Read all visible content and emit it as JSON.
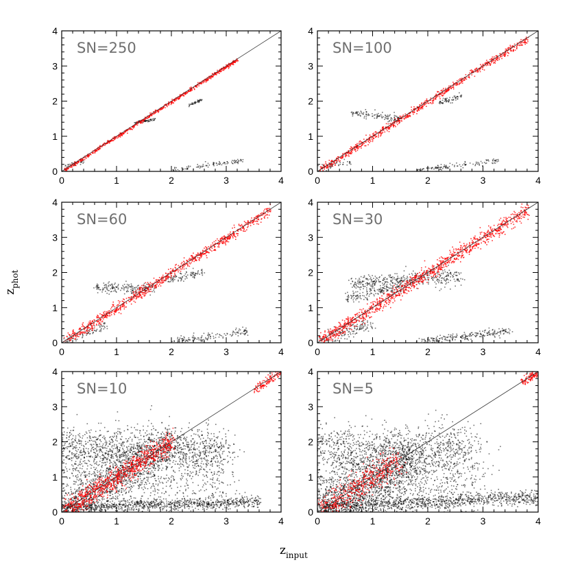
{
  "chart_data": {
    "type": "scatter",
    "figure": "photometric vs input redshift at varying signal-to-noise",
    "xlabel": "z",
    "xlabel_sub": "input",
    "ylabel": "z",
    "ylabel_sub": "phot",
    "xlim": [
      0,
      4
    ],
    "ylim": [
      0,
      4
    ],
    "xticks": [
      0,
      1,
      2,
      3,
      4
    ],
    "yticks": [
      0,
      1,
      2,
      3,
      4
    ],
    "colors": {
      "points": "#000000",
      "highlight": "#ff0000",
      "label": "#6f6f6f",
      "diagonal": "#333333"
    },
    "panels": [
      {
        "label": "SN=250",
        "reference_line": [
          [
            0,
            0
          ],
          [
            4,
            4
          ]
        ],
        "clusters": [
          {
            "x0": 0.05,
            "y0": 0.05,
            "x1": 3.2,
            "y1": 3.2,
            "w": 0.025,
            "n": 700,
            "c": "red"
          },
          {
            "x0": 1.3,
            "y0": 1.4,
            "x1": 1.7,
            "y1": 1.5,
            "w": 0.02,
            "n": 60,
            "c": "black"
          },
          {
            "x0": 2.3,
            "y0": 1.9,
            "x1": 2.55,
            "y1": 2.05,
            "w": 0.02,
            "n": 40,
            "c": "black"
          },
          {
            "x0": 2.0,
            "y0": 0.05,
            "x1": 3.3,
            "y1": 0.32,
            "w": 0.03,
            "n": 100,
            "c": "black"
          },
          {
            "x0": 0.05,
            "y0": 0.15,
            "x1": 0.4,
            "y1": 0.3,
            "w": 0.03,
            "n": 30,
            "c": "black"
          }
        ]
      },
      {
        "label": "SN=100",
        "reference_line": [
          [
            0,
            0
          ],
          [
            4,
            4
          ]
        ],
        "clusters": [
          {
            "x0": 0.05,
            "y0": 0.05,
            "x1": 3.8,
            "y1": 3.8,
            "w": 0.05,
            "n": 800,
            "c": "red"
          },
          {
            "x0": 0.6,
            "y0": 1.7,
            "x1": 1.5,
            "y1": 1.5,
            "w": 0.05,
            "n": 120,
            "c": "black"
          },
          {
            "x0": 2.2,
            "y0": 1.95,
            "x1": 2.6,
            "y1": 2.15,
            "w": 0.04,
            "n": 60,
            "c": "black"
          },
          {
            "x0": 1.8,
            "y0": 0.05,
            "x1": 3.3,
            "y1": 0.32,
            "w": 0.04,
            "n": 120,
            "c": "black"
          },
          {
            "x0": 0.05,
            "y0": 0.1,
            "x1": 0.6,
            "y1": 0.3,
            "w": 0.05,
            "n": 50,
            "c": "black"
          }
        ]
      },
      {
        "label": "SN=60",
        "reference_line": [
          [
            0,
            0
          ],
          [
            4,
            4
          ]
        ],
        "clusters": [
          {
            "x0": 0.05,
            "y0": 0.05,
            "x1": 3.8,
            "y1": 3.8,
            "w": 0.07,
            "n": 900,
            "c": "red"
          },
          {
            "x0": 0.6,
            "y0": 1.6,
            "x1": 1.7,
            "y1": 1.55,
            "w": 0.07,
            "n": 180,
            "c": "black"
          },
          {
            "x0": 1.9,
            "y0": 1.8,
            "x1": 2.6,
            "y1": 2.05,
            "w": 0.06,
            "n": 90,
            "c": "black"
          },
          {
            "x0": 2.0,
            "y0": 0.05,
            "x1": 3.4,
            "y1": 0.35,
            "w": 0.05,
            "n": 140,
            "c": "black"
          },
          {
            "x0": 0.05,
            "y0": 0.05,
            "x1": 0.8,
            "y1": 0.5,
            "w": 0.07,
            "n": 80,
            "c": "black"
          }
        ]
      },
      {
        "label": "SN=30",
        "reference_line": [
          [
            0,
            0
          ],
          [
            4,
            4
          ]
        ],
        "clusters": [
          {
            "x0": 0.05,
            "y0": 0.05,
            "x1": 3.8,
            "y1": 3.8,
            "w": 0.1,
            "n": 1100,
            "c": "red"
          },
          {
            "x0": 0.6,
            "y0": 1.7,
            "x1": 2.6,
            "y1": 1.9,
            "w": 0.12,
            "n": 400,
            "c": "black"
          },
          {
            "x0": 0.5,
            "y0": 1.3,
            "x1": 1.6,
            "y1": 1.6,
            "w": 0.08,
            "n": 150,
            "c": "black"
          },
          {
            "x0": 1.8,
            "y0": 0.05,
            "x1": 3.5,
            "y1": 0.35,
            "w": 0.06,
            "n": 220,
            "c": "black"
          },
          {
            "x0": 0.05,
            "y0": 0.05,
            "x1": 1.0,
            "y1": 0.6,
            "w": 0.1,
            "n": 150,
            "c": "black"
          }
        ]
      },
      {
        "label": "SN=10",
        "reference_line": [
          [
            0,
            0
          ],
          [
            4,
            4
          ]
        ],
        "clusters": [
          {
            "x0": 0.05,
            "y0": 0.05,
            "x1": 2.0,
            "y1": 2.0,
            "w": 0.15,
            "n": 900,
            "c": "red"
          },
          {
            "x0": 3.5,
            "y0": 3.5,
            "x1": 4.0,
            "y1": 4.0,
            "w": 0.06,
            "n": 120,
            "c": "red"
          },
          {
            "x0": 0.0,
            "y0": 1.8,
            "x1": 3.0,
            "y1": 1.8,
            "w": 0.3,
            "n": 1200,
            "c": "black"
          },
          {
            "x0": 0.0,
            "y0": 0.15,
            "x1": 3.6,
            "y1": 0.3,
            "w": 0.08,
            "n": 900,
            "c": "black"
          },
          {
            "x0": 0.05,
            "y0": 0.05,
            "x1": 2.0,
            "y1": 2.0,
            "w": 0.3,
            "n": 1000,
            "c": "black"
          },
          {
            "x0": 0.0,
            "y0": 0.9,
            "x1": 3.0,
            "y1": 0.9,
            "w": 0.5,
            "n": 700,
            "c": "black"
          }
        ]
      },
      {
        "label": "SN=5",
        "reference_line": [
          [
            0,
            0
          ],
          [
            4,
            4
          ]
        ],
        "clusters": [
          {
            "x0": 0.05,
            "y0": 0.05,
            "x1": 1.5,
            "y1": 1.5,
            "w": 0.2,
            "n": 500,
            "c": "red"
          },
          {
            "x0": 3.7,
            "y0": 3.7,
            "x1": 4.0,
            "y1": 4.0,
            "w": 0.06,
            "n": 100,
            "c": "red"
          },
          {
            "x0": 0.0,
            "y0": 1.8,
            "x1": 2.8,
            "y1": 1.8,
            "w": 0.35,
            "n": 1000,
            "c": "black"
          },
          {
            "x0": 0.0,
            "y0": 0.15,
            "x1": 4.0,
            "y1": 0.45,
            "w": 0.1,
            "n": 1000,
            "c": "black"
          },
          {
            "x0": 0.05,
            "y0": 0.05,
            "x1": 1.8,
            "y1": 1.6,
            "w": 0.35,
            "n": 1200,
            "c": "black"
          },
          {
            "x0": 0.0,
            "y0": 0.8,
            "x1": 3.0,
            "y1": 0.8,
            "w": 0.5,
            "n": 800,
            "c": "black"
          }
        ]
      }
    ]
  }
}
